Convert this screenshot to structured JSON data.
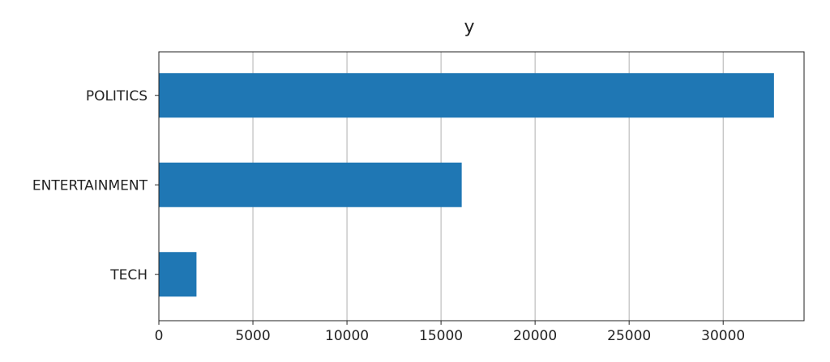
{
  "chart_data": {
    "type": "bar",
    "orientation": "horizontal",
    "title": "y",
    "xlabel": "",
    "ylabel": "",
    "categories": [
      "POLITICS",
      "ENTERTAINMENT",
      "TECH"
    ],
    "values": [
      32700,
      16100,
      2000
    ],
    "xlim": [
      0,
      34300
    ],
    "xticks": [
      0,
      5000,
      10000,
      15000,
      20000,
      25000,
      30000
    ],
    "xtick_labels": [
      "0",
      "5000",
      "10000",
      "15000",
      "20000",
      "25000",
      "30000"
    ],
    "grid": "x",
    "bar_color": "#1f77b4",
    "legend": "none"
  }
}
